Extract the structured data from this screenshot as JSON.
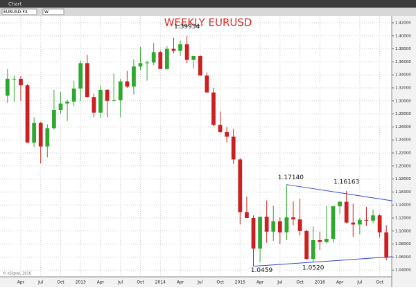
{
  "window_title": "Chart",
  "symbol": "EURUSD-FX",
  "interval": "W",
  "copyright": "© eSignal, 2016",
  "chart_data": {
    "type": "candlestick",
    "title": "WEEKLY EURUSD",
    "categories": [
      null,
      null,
      "Apr",
      null,
      null,
      "Jul",
      null,
      null,
      "Oct",
      null,
      null,
      "2013",
      null,
      null,
      "Apr",
      null,
      null,
      "Jul",
      null,
      null,
      "Oct",
      null,
      null,
      "2014",
      null,
      null,
      "Apr",
      null,
      null,
      "Jul",
      null,
      null,
      "Oct",
      null,
      null,
      "2015",
      null,
      null,
      "Apr",
      null,
      null,
      "Jul",
      null,
      null,
      "Oct",
      null,
      null,
      "2016",
      null,
      null,
      "Apr",
      null,
      null,
      "Jul",
      null,
      null,
      "Oct",
      null
    ],
    "open": [
      1.308,
      1.334,
      1.334,
      1.324,
      1.236,
      1.266,
      1.23,
      1.258,
      1.286,
      1.296,
      1.299,
      1.319,
      1.358,
      1.306,
      1.282,
      1.317,
      1.3,
      1.301,
      1.33,
      1.322,
      1.353,
      1.358,
      1.359,
      1.375,
      1.349,
      1.38,
      1.377,
      1.387,
      1.363,
      1.369,
      1.339,
      1.313,
      1.263,
      1.252,
      1.245,
      1.21,
      1.129,
      1.12,
      1.073,
      1.122,
      1.099,
      1.115,
      1.098,
      1.121,
      1.118,
      1.1,
      1.057,
      1.086,
      1.083,
      1.088,
      1.138,
      1.145,
      1.113,
      1.11,
      1.117,
      1.116,
      1.124,
      1.098
    ],
    "high": [
      1.349,
      1.339,
      1.338,
      1.326,
      1.275,
      1.268,
      1.264,
      1.317,
      1.314,
      1.302,
      1.331,
      1.362,
      1.371,
      1.311,
      1.324,
      1.318,
      1.342,
      1.334,
      1.346,
      1.364,
      1.383,
      1.362,
      1.389,
      1.377,
      1.384,
      1.397,
      1.393,
      1.39934,
      1.369,
      1.37,
      1.344,
      1.32,
      1.284,
      1.26,
      1.257,
      1.212,
      1.153,
      1.124,
      1.122,
      1.147,
      1.139,
      1.121,
      1.1714,
      1.146,
      1.15,
      1.102,
      1.107,
      1.099,
      1.139,
      1.139,
      1.146,
      1.16163,
      1.142,
      1.12,
      1.137,
      1.133,
      1.126,
      1.109
    ],
    "low": [
      1.297,
      1.299,
      1.3,
      1.236,
      1.229,
      1.204,
      1.213,
      1.256,
      1.28,
      1.269,
      1.292,
      1.3,
      1.305,
      1.275,
      1.274,
      1.275,
      1.299,
      1.275,
      1.32,
      1.31,
      1.347,
      1.331,
      1.355,
      1.349,
      1.348,
      1.373,
      1.369,
      1.358,
      1.35,
      1.339,
      1.313,
      1.261,
      1.251,
      1.236,
      1.203,
      1.11,
      1.121,
      1.0459,
      1.052,
      1.082,
      1.085,
      1.08,
      1.086,
      1.109,
      1.093,
      1.056,
      1.052,
      1.071,
      1.081,
      1.082,
      1.126,
      1.112,
      1.091,
      1.095,
      1.108,
      1.112,
      1.09,
      1.055
    ],
    "close": [
      1.334,
      1.334,
      1.324,
      1.236,
      1.266,
      1.23,
      1.258,
      1.286,
      1.296,
      1.299,
      1.319,
      1.358,
      1.306,
      1.282,
      1.317,
      1.3,
      1.301,
      1.33,
      1.322,
      1.353,
      1.358,
      1.359,
      1.375,
      1.349,
      1.38,
      1.377,
      1.387,
      1.363,
      1.369,
      1.339,
      1.313,
      1.263,
      1.252,
      1.245,
      1.21,
      1.129,
      1.12,
      1.073,
      1.122,
      1.099,
      1.115,
      1.098,
      1.121,
      1.118,
      1.1,
      1.057,
      1.086,
      1.083,
      1.088,
      1.138,
      1.145,
      1.113,
      1.11,
      1.117,
      1.116,
      1.124,
      1.098,
      1.059
    ],
    "up_color": "#2ea82e",
    "down_color": "#cc2020",
    "ylim": [
      1.03,
      1.44
    ],
    "yticks": [
      {
        "value": 1.04,
        "label": "1.04000"
      },
      {
        "value": 1.06,
        "label": "1.06000"
      },
      {
        "value": 1.08,
        "label": "1.08000"
      },
      {
        "value": 1.1,
        "label": "1.10000"
      },
      {
        "value": 1.12,
        "label": "1.12000"
      },
      {
        "value": 1.14,
        "label": "1.14000"
      },
      {
        "value": 1.16,
        "label": "1.16000"
      },
      {
        "value": 1.18,
        "label": "1.18000"
      },
      {
        "value": 1.2,
        "label": "1.20000"
      },
      {
        "value": 1.22,
        "label": "1.22000"
      },
      {
        "value": 1.24,
        "label": "1.24000"
      },
      {
        "value": 1.26,
        "label": "1.26000"
      },
      {
        "value": 1.28,
        "label": "1.28000"
      },
      {
        "value": 1.3,
        "label": "1.30000"
      },
      {
        "value": 1.32,
        "label": "1.32000"
      },
      {
        "value": 1.34,
        "label": "1.34000"
      },
      {
        "value": 1.36,
        "label": "1.36000"
      },
      {
        "value": 1.38,
        "label": "1.38000"
      },
      {
        "value": 1.4,
        "label": "1.40000"
      },
      {
        "value": 1.42,
        "label": "1.42000"
      }
    ],
    "grid": true,
    "trendlines": [
      {
        "x": [
          37,
          57.9
        ],
        "y": [
          1.0459,
          1.0605
        ],
        "color": "#3344cc"
      },
      {
        "x": [
          42,
          57.9
        ],
        "y": [
          1.1714,
          1.1465
        ],
        "color": "#3344cc"
      }
    ],
    "annotations": [
      {
        "text": "1.39934",
        "index": 27
      },
      {
        "text": "1.17140",
        "index": 42
      },
      {
        "text": "1.16163",
        "index": 51
      },
      {
        "text": "1.0459",
        "index": 37
      },
      {
        "text": "1.0520",
        "index": 46
      }
    ]
  }
}
